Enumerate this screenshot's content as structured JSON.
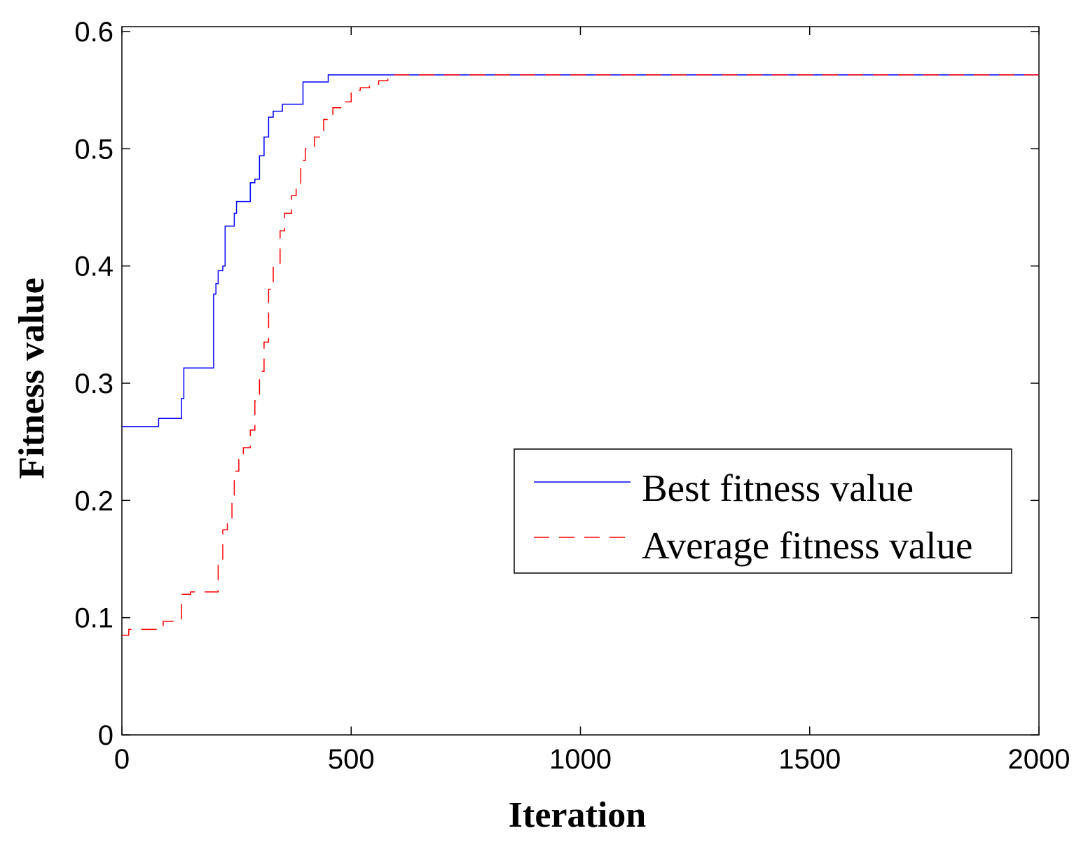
{
  "chart_data": {
    "type": "line",
    "xlabel": "Iteration",
    "ylabel": "Fitness value",
    "xlim": [
      0,
      2000
    ],
    "ylim": [
      0,
      0.6
    ],
    "xticks": [
      0,
      500,
      1000,
      1500,
      2000
    ],
    "xtick_labels": [
      "0",
      "500",
      "1000",
      "1500",
      "2000"
    ],
    "yticks": [
      0,
      0.1,
      0.2,
      0.3,
      0.4,
      0.5,
      0.6
    ],
    "ytick_labels": [
      "0",
      "0.1",
      "0.2",
      "0.3",
      "0.4",
      "0.5",
      "0.6"
    ],
    "grid": false,
    "legend_position": "center-right",
    "series": [
      {
        "name": "Best fitness value",
        "color": "#0000ff",
        "style": "solid",
        "x": [
          0,
          75,
          80,
          130,
          135,
          200,
          205,
          210,
          220,
          225,
          245,
          250,
          280,
          290,
          300,
          310,
          320,
          330,
          350,
          395,
          450,
          2000
        ],
        "y": [
          0.263,
          0.263,
          0.27,
          0.287,
          0.313,
          0.376,
          0.385,
          0.396,
          0.4,
          0.434,
          0.445,
          0.455,
          0.471,
          0.474,
          0.494,
          0.51,
          0.527,
          0.532,
          0.538,
          0.557,
          0.563,
          0.563
        ]
      },
      {
        "name": "Average fitness value",
        "color": "#ff0000",
        "style": "dashed",
        "x": [
          0,
          15,
          70,
          90,
          125,
          130,
          150,
          195,
          210,
          220,
          230,
          240,
          245,
          255,
          265,
          280,
          290,
          300,
          310,
          320,
          330,
          345,
          355,
          370,
          380,
          390,
          400,
          420,
          440,
          460,
          480,
          500,
          520,
          540,
          560,
          580,
          2000
        ],
        "y": [
          0.085,
          0.09,
          0.09,
          0.097,
          0.097,
          0.12,
          0.122,
          0.122,
          0.15,
          0.175,
          0.18,
          0.2,
          0.225,
          0.235,
          0.245,
          0.26,
          0.285,
          0.31,
          0.335,
          0.38,
          0.4,
          0.43,
          0.445,
          0.46,
          0.47,
          0.49,
          0.5,
          0.51,
          0.525,
          0.535,
          0.54,
          0.55,
          0.552,
          0.555,
          0.558,
          0.563,
          0.563
        ]
      }
    ]
  }
}
